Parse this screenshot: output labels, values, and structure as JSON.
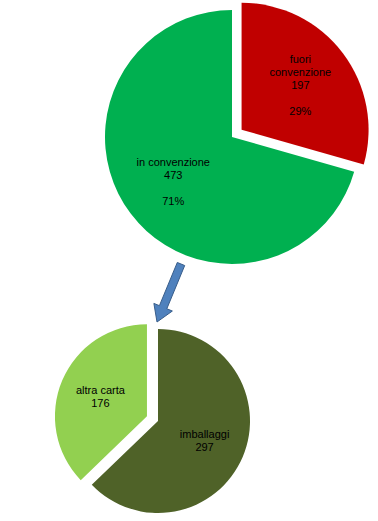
{
  "chart_data": [
    {
      "type": "pie",
      "categories": [
        "fuori convenzione",
        "in convenzione"
      ],
      "values": [
        197,
        473
      ],
      "percentages": [
        {
          "value": 29,
          "label": "29%"
        },
        {
          "value": 71,
          "label": "71%"
        }
      ],
      "colors": [
        "#c00000",
        "#00b050"
      ],
      "data_labels": true
    },
    {
      "type": "pie",
      "categories": [
        "imballaggi",
        "altra carta"
      ],
      "values": [
        297,
        176
      ],
      "colors": [
        "#4f6228",
        "#92d050"
      ],
      "data_labels": true
    }
  ]
}
